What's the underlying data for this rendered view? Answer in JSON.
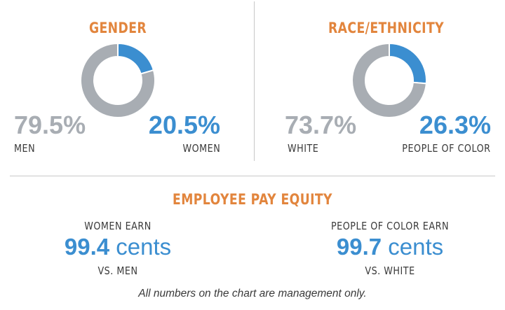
{
  "colors": {
    "accent": "#e2853d",
    "blue": "#3b8ed0",
    "gray": "#a8adb3"
  },
  "chart_data": [
    {
      "type": "pie",
      "title": "GENDER",
      "series": [
        {
          "name": "MEN",
          "value": 79.5,
          "label": "79.5%",
          "color": "#a8adb3"
        },
        {
          "name": "WOMEN",
          "value": 20.5,
          "label": "20.5%",
          "color": "#3b8ed0"
        }
      ]
    },
    {
      "type": "pie",
      "title": "RACE/ETHNICITY",
      "series": [
        {
          "name": "WHITE",
          "value": 73.7,
          "label": "73.7%",
          "color": "#a8adb3"
        },
        {
          "name": "PEOPLE OF COLOR",
          "value": 26.3,
          "label": "26.3%",
          "color": "#3b8ed0"
        }
      ]
    }
  ],
  "pay_equity": {
    "title": "EMPLOYEE PAY EQUITY",
    "women": {
      "top": "WOMEN EARN",
      "number": "99.4",
      "unit": "cents",
      "bottom": "VS. MEN"
    },
    "poc": {
      "top": "PEOPLE OF COLOR EARN",
      "number": "99.7",
      "unit": "cents",
      "bottom": "VS. WHITE"
    }
  },
  "footnote": "All numbers on the chart are management only."
}
